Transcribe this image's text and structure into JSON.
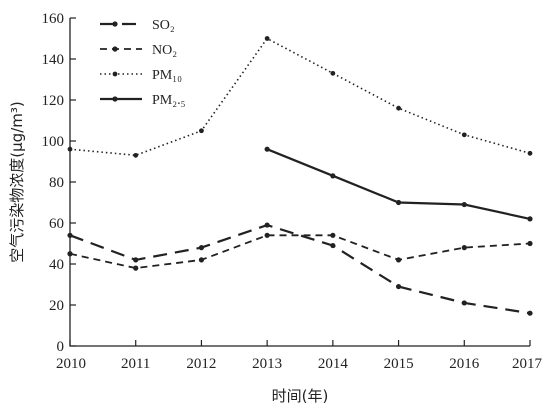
{
  "chart_data": {
    "type": "line",
    "xlabel": "时间(年)",
    "ylabel": "空气污染物浓度(μg/m³)",
    "x": [
      2010,
      2011,
      2012,
      2013,
      2014,
      2015,
      2016,
      2017
    ],
    "xticks": [
      "2010",
      "2011",
      "2012",
      "2013",
      "2014",
      "2015",
      "2016",
      "2017"
    ],
    "yticks": [
      "0",
      "20",
      "40",
      "60",
      "80",
      "100",
      "120",
      "140",
      "160"
    ],
    "ylim": [
      0,
      160
    ],
    "grid": false,
    "legend_position": "top-left",
    "series": [
      {
        "name": "SO₂",
        "style": "long-dash",
        "values": [
          54,
          42,
          48,
          59,
          49,
          29,
          21,
          16
        ]
      },
      {
        "name": "NO₂",
        "style": "dash",
        "values": [
          45,
          38,
          42,
          54,
          54,
          42,
          48,
          50
        ]
      },
      {
        "name": "PM₁₀",
        "style": "dotted",
        "values": [
          96,
          93,
          105,
          150,
          133,
          116,
          103,
          94
        ]
      },
      {
        "name": "PM₂.₅",
        "style": "solid",
        "values": [
          null,
          null,
          null,
          96,
          83,
          70,
          69,
          62
        ]
      }
    ]
  }
}
